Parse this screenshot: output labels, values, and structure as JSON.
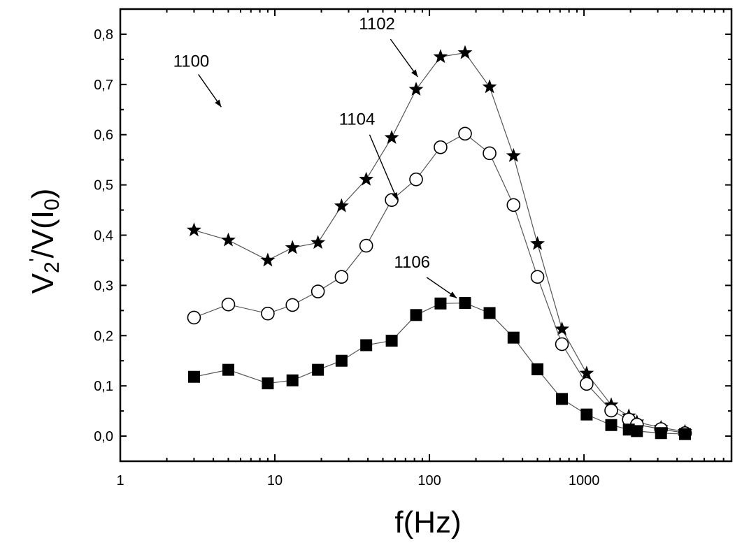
{
  "chart_data": {
    "type": "scatter",
    "xscale": "log",
    "xlim": [
      1,
      9000
    ],
    "ylim": [
      -0.05,
      0.85
    ],
    "xlabel": "f(Hz)",
    "ylabel_parts": {
      "base1": "V",
      "sub1": "2",
      "prime": "'",
      "mid": "/V(I",
      "sub2": "0",
      "end": ")"
    },
    "x_ticks": [
      {
        "value": 1,
        "label": "1"
      },
      {
        "value": 10,
        "label": "10"
      },
      {
        "value": 100,
        "label": "100"
      },
      {
        "value": 1000,
        "label": "1000"
      }
    ],
    "y_ticks": [
      {
        "value": 0.0,
        "label": "0,0"
      },
      {
        "value": 0.1,
        "label": "0,1"
      },
      {
        "value": 0.2,
        "label": "0,2"
      },
      {
        "value": 0.3,
        "label": "0,3"
      },
      {
        "value": 0.4,
        "label": "0,4"
      },
      {
        "value": 0.5,
        "label": "0,5"
      },
      {
        "value": 0.6,
        "label": "0,6"
      },
      {
        "value": 0.7,
        "label": "0,7"
      },
      {
        "value": 0.8,
        "label": "0,8"
      }
    ],
    "series": [
      {
        "marker": "star",
        "x": [
          3,
          5,
          9,
          13,
          19,
          27,
          39,
          57,
          82,
          118,
          170,
          245,
          350,
          500,
          720,
          1040,
          1500,
          1950,
          2200,
          3150,
          4500
        ],
        "y": [
          0.41,
          0.39,
          0.35,
          0.375,
          0.385,
          0.458,
          0.511,
          0.594,
          0.69,
          0.755,
          0.763,
          0.695,
          0.558,
          0.383,
          0.213,
          0.125,
          0.062,
          0.04,
          0.028,
          0.017,
          0.009
        ]
      },
      {
        "marker": "circle",
        "x": [
          3,
          5,
          9,
          13,
          19,
          27,
          39,
          57,
          82,
          118,
          170,
          245,
          350,
          500,
          720,
          1040,
          1500,
          1950,
          2200,
          3150,
          4500
        ],
        "y": [
          0.236,
          0.262,
          0.244,
          0.261,
          0.288,
          0.317,
          0.379,
          0.47,
          0.511,
          0.575,
          0.602,
          0.563,
          0.46,
          0.317,
          0.183,
          0.104,
          0.051,
          0.033,
          0.023,
          0.014,
          0.006
        ]
      },
      {
        "marker": "square",
        "x": [
          3,
          5,
          9,
          13,
          19,
          27,
          39,
          57,
          82,
          118,
          170,
          245,
          350,
          500,
          720,
          1040,
          1500,
          1950,
          2200,
          3150,
          4500
        ],
        "y": [
          0.118,
          0.132,
          0.105,
          0.111,
          0.132,
          0.15,
          0.181,
          0.19,
          0.241,
          0.264,
          0.265,
          0.245,
          0.196,
          0.133,
          0.074,
          0.043,
          0.022,
          0.013,
          0.01,
          0.006,
          0.004
        ]
      }
    ],
    "annotations": [
      {
        "text": "1100",
        "text_x": 2.2,
        "text_y": 0.735,
        "arrow_from": [
          3.2,
          0.72
        ],
        "arrow_to": [
          4.5,
          0.655
        ]
      },
      {
        "text": "1102",
        "text_x": 35,
        "text_y": 0.81,
        "arrow_from": [
          56,
          0.79
        ],
        "arrow_to": [
          84,
          0.715
        ]
      },
      {
        "text": "1104",
        "text_x": 26,
        "text_y": 0.62,
        "arrow_from": [
          41,
          0.6
        ],
        "arrow_to": [
          62,
          0.47
        ]
      },
      {
        "text": "1106",
        "text_x": 59,
        "text_y": 0.335,
        "arrow_from": [
          96,
          0.316
        ],
        "arrow_to": [
          150,
          0.275
        ]
      }
    ]
  }
}
